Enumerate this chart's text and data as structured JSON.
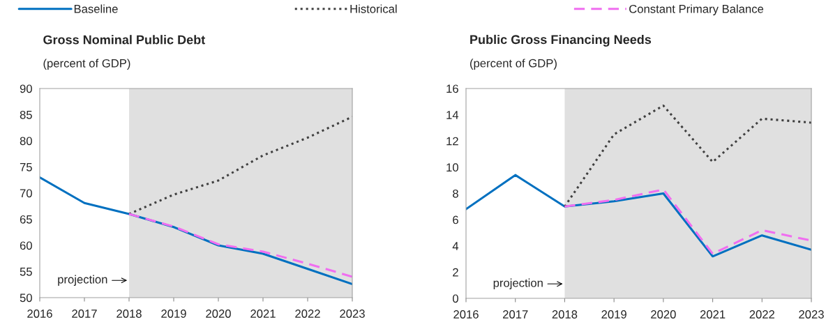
{
  "chart_data": [
    {
      "type": "line",
      "title": "Gross Nominal Public Debt",
      "subtitle": "(percent of GDP)",
      "xlim": [
        2016,
        2023
      ],
      "xticks": [
        2016,
        2017,
        2018,
        2019,
        2020,
        2021,
        2022,
        2023
      ],
      "ylim": [
        50,
        90
      ],
      "yticks": [
        50,
        55,
        60,
        65,
        70,
        75,
        80,
        85,
        90
      ],
      "grid": false,
      "legend": "top",
      "bands": [
        {
          "axis": "x",
          "from": 2018,
          "to": 2023,
          "label": null,
          "color": "#e0e0e0"
        }
      ],
      "annotations": [
        {
          "text": "projection",
          "x": 2018,
          "y": 53.3
        }
      ],
      "series": [
        {
          "name": "Baseline",
          "color": "#0070c0",
          "line_style": "solid",
          "x": [
            2016,
            2017,
            2018,
            2019,
            2020,
            2021,
            2022,
            2023
          ],
          "values": [
            73,
            68.1,
            66,
            63.5,
            60,
            58.4,
            55.5,
            52.6
          ]
        },
        {
          "name": "Historical",
          "color": "#404040",
          "line_style": "dotted",
          "x": [
            2018,
            2019,
            2020,
            2021,
            2022,
            2023
          ],
          "values": [
            66,
            69.7,
            72.4,
            77.2,
            80.6,
            84.6
          ]
        },
        {
          "name": "Constant Primary Balance",
          "color": "#f06ef0",
          "line_style": "dashed",
          "x": [
            2018,
            2019,
            2020,
            2021,
            2022,
            2023
          ],
          "values": [
            66,
            63.6,
            60.2,
            58.8,
            56.5,
            54
          ]
        }
      ]
    },
    {
      "type": "line",
      "title": "Public Gross Financing Needs",
      "subtitle": "(percent of GDP)",
      "xlim": [
        2016,
        2023
      ],
      "xticks": [
        2016,
        2017,
        2018,
        2019,
        2020,
        2021,
        2022,
        2023
      ],
      "ylim": [
        0,
        16
      ],
      "yticks": [
        0,
        2,
        4,
        6,
        8,
        10,
        12,
        14,
        16
      ],
      "grid": false,
      "legend": false,
      "bands": [
        {
          "axis": "x",
          "from": 2018,
          "to": 2023,
          "label": null,
          "color": "#e0e0e0"
        }
      ],
      "annotations": [
        {
          "text": "projection",
          "x": 2018,
          "y": 1.1
        }
      ],
      "series": [
        {
          "color": "#0070c0",
          "line_style": "solid",
          "x": [
            2016,
            2017,
            2018,
            2019,
            2020,
            2021,
            2022,
            2023
          ],
          "values": [
            6.8,
            9.4,
            7.0,
            7.4,
            8.0,
            3.2,
            4.8,
            3.7
          ]
        },
        {
          "color": "#404040",
          "line_style": "dotted",
          "x": [
            2018,
            2019,
            2020,
            2021,
            2022,
            2023
          ],
          "values": [
            7.0,
            12.5,
            14.7,
            10.4,
            13.7,
            13.4
          ]
        },
        {
          "color": "#f06ef0",
          "line_style": "dashed",
          "x": [
            2018,
            2019,
            2020,
            2021,
            2022,
            2023
          ],
          "values": [
            7.0,
            7.5,
            8.3,
            3.4,
            5.2,
            4.4
          ]
        }
      ]
    }
  ]
}
